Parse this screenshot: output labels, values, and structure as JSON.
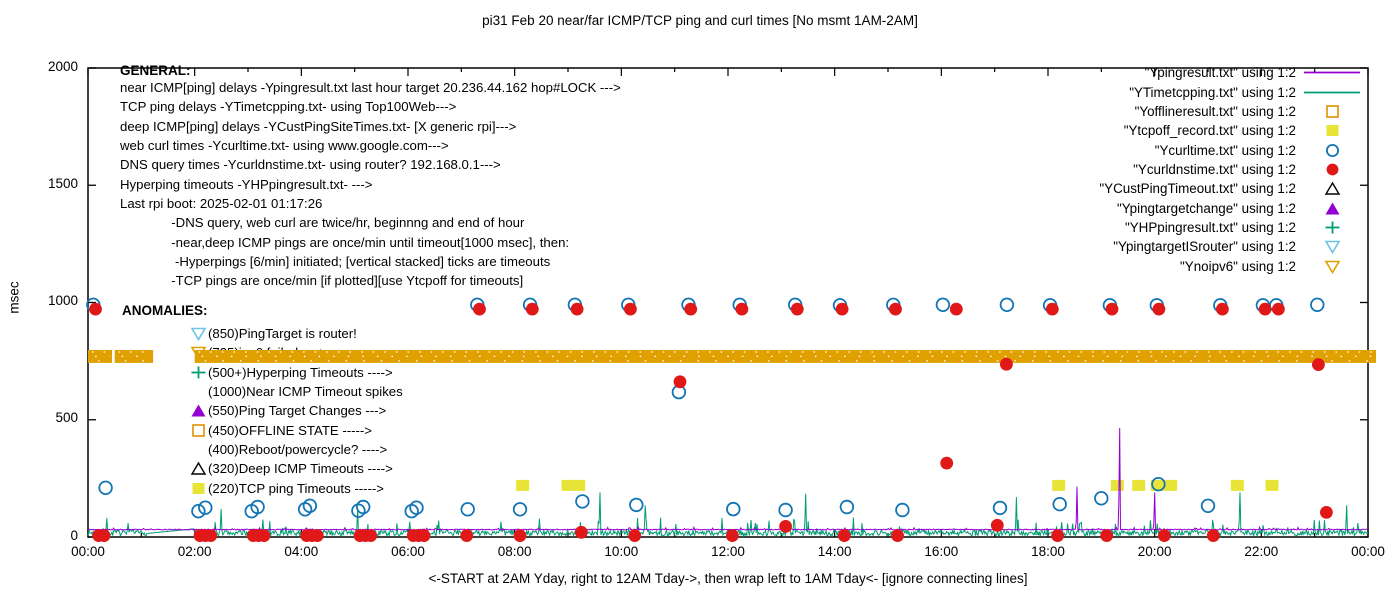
{
  "title": "pi31 Feb 20  near/far ICMP/TCP ping and curl times [No msmt 1AM-2AM]",
  "y_axis": {
    "label": "msec",
    "ticks": [
      0,
      500,
      1000,
      1500,
      2000
    ],
    "max": 2000
  },
  "x_axis": {
    "tick_labels": [
      "00:00",
      "02:00",
      "04:00",
      "06:00",
      "08:00",
      "10:00",
      "12:00",
      "14:00",
      "16:00",
      "18:00",
      "20:00",
      "22:00",
      "00:00"
    ],
    "tick_step_hours": 2,
    "caption": "<-START at 2AM Yday, right to 12AM Tday->, then wrap left to 1AM Tday<- [ignore connecting lines]"
  },
  "general": {
    "heading": "GENERAL:",
    "lines": [
      "near ICMP[ping] delays -Ypingresult.txt last hour target 20.236.44.162 hop#LOCK --->",
      "TCP ping delays -YTimetcpping.txt- using Top100Web--->",
      "deep ICMP[ping] delays -YCustPingSiteTimes.txt- [X generic rpi]--->",
      "web curl times -Ycurltime.txt- using www.google.com--->",
      "DNS query times -Ycurldnstime.txt- using router? 192.168.0.1--->",
      "Hyperping timeouts -YHPpingresult.txt- --->",
      "Last rpi boot: 2025-02-01 01:17:26",
      "              -DNS query, web curl are twice/hr, beginnng and end of hour",
      "              -near,deep ICMP pings are once/min until timeout[1000 msec], then:",
      "               -Hyperpings [6/min] initiated; [vertical stacked] ticks are timeouts",
      "              -TCP pings are once/min [if plotted][use Ytcpoff for timeouts]"
    ]
  },
  "anomalies": {
    "heading": "ANOMALIES:",
    "items": [
      {
        "marker": "down-triangle-open",
        "color": "#6FC2E8",
        "text": "(850)PingTarget is router!"
      },
      {
        "marker": "down-triangle-open",
        "color": "#DFA000",
        "text": "(735)ipv6 failed ---->"
      },
      {
        "marker": "plus",
        "color": "#009E73",
        "text": "(500+)Hyperping Timeouts ---->"
      },
      {
        "marker": "none",
        "color": "#000000",
        "text": "(1000)Near ICMP Timeout spikes"
      },
      {
        "marker": "triangle-fill",
        "color": "#9400D3",
        "text": "(550)Ping Target Changes --->"
      },
      {
        "marker": "square-open",
        "color": "#E09000",
        "text": "(450)OFFLINE STATE ----->"
      },
      {
        "marker": "none",
        "color": "#000000",
        "text": "(400)Reboot/powercycle? ---->"
      },
      {
        "marker": "triangle-open",
        "color": "#000000",
        "text": "(320)Deep ICMP Timeouts ---->"
      },
      {
        "marker": "square-fill",
        "color": "#E8E337",
        "text": "(220)TCP ping Timeouts ----->"
      }
    ]
  },
  "legend": {
    "items": [
      {
        "label": "\"Ypingresult.txt\" using 1:2",
        "marker": "line",
        "color": "#9400D3"
      },
      {
        "label": "\"YTimetcpping.txt\" using 1:2",
        "marker": "line",
        "color": "#009E73"
      },
      {
        "label": "\"Yofflineresult.txt\" using 1:2",
        "marker": "square-open",
        "color": "#E09000"
      },
      {
        "label": "\"Ytcpoff_record.txt\" using 1:2",
        "marker": "square-fill",
        "color": "#E8E337"
      },
      {
        "label": "\"Ycurltime.txt\" using 1:2",
        "marker": "circle-open",
        "color": "#1374B4"
      },
      {
        "label": "\"Ycurldnstime.txt\" using 1:2",
        "marker": "circle-fill",
        "color": "#E01818"
      },
      {
        "label": "\"YCustPingTimeout.txt\" using 1:2",
        "marker": "triangle-open",
        "color": "#000000"
      },
      {
        "label": "\"Ypingtargetchange\" using 1:2",
        "marker": "triangle-fill",
        "color": "#9400D3"
      },
      {
        "label": "\"YHPpingresult.txt\" using 1:2",
        "marker": "plus",
        "color": "#009E73"
      },
      {
        "label": "\"YpingtargetISrouter\" using 1:2",
        "marker": "down-triangle-open",
        "color": "#6FC2E8"
      },
      {
        "label": "\"Ynoipv6\" using 1:2",
        "marker": "down-triangle-open",
        "color": "#DFA000"
      }
    ]
  },
  "chart_data": {
    "type": "scatter",
    "title": "pi31 Feb 20  near/far ICMP/TCP ping and curl times [No msmt 1AM-2AM]",
    "xlabel": "<-START at 2AM Yday, right to 12AM Tday->, then wrap left to 1AM Tday<- [ignore connecting lines]",
    "ylabel": "msec",
    "xlim": [
      0,
      24
    ],
    "ylim": [
      0,
      2000
    ],
    "grid": false,
    "legend_position": "top-right",
    "series": [
      {
        "name": "Ynoipv6",
        "kind": "band",
        "color": "#DFA000",
        "y": 770,
        "thickness_msec": 55,
        "segments": [
          [
            0.0,
            0.45
          ],
          [
            0.5,
            1.22
          ],
          [
            2.0,
            24.15
          ]
        ]
      },
      {
        "name": "Ytcpoff_record.txt",
        "kind": "square-fill",
        "color": "#E8E337",
        "points": [
          [
            8.15,
            220
          ],
          [
            9.0,
            220
          ],
          [
            9.2,
            220
          ],
          [
            18.2,
            220
          ],
          [
            19.3,
            220
          ],
          [
            19.7,
            220
          ],
          [
            20.05,
            220
          ],
          [
            20.3,
            220
          ],
          [
            21.55,
            220
          ],
          [
            22.2,
            220
          ]
        ]
      },
      {
        "name": "YTimetcpping.txt",
        "kind": "line",
        "color": "#009E73",
        "baseline": 5,
        "noise_amp": 62,
        "seed": 7,
        "flat_span": [
          1.1,
          2.0
        ],
        "spikes": [
          [
            0.35,
            80
          ],
          [
            2.5,
            120
          ],
          [
            5.05,
            120
          ],
          [
            9.6,
            190
          ],
          [
            10.45,
            135
          ],
          [
            13.45,
            185
          ],
          [
            17.4,
            170
          ],
          [
            21.6,
            190
          ],
          [
            23.6,
            135
          ]
        ]
      },
      {
        "name": "Ypingresult.txt",
        "kind": "line",
        "color": "#9400D3",
        "baseline": 30,
        "noise_amp": 9,
        "seed": 11,
        "spikes": [
          [
            18.55,
            215
          ],
          [
            19.35,
            465
          ],
          [
            20.0,
            190
          ]
        ]
      },
      {
        "name": "Ycurltime.txt",
        "kind": "circle-open",
        "color": "#1374B4",
        "points": [
          [
            0.1,
            990
          ],
          [
            0.33,
            210
          ],
          [
            2.07,
            110
          ],
          [
            2.2,
            125
          ],
          [
            3.07,
            110
          ],
          [
            3.18,
            128
          ],
          [
            4.07,
            118
          ],
          [
            4.16,
            133
          ],
          [
            5.07,
            112
          ],
          [
            5.16,
            128
          ],
          [
            6.07,
            110
          ],
          [
            6.16,
            125
          ],
          [
            7.12,
            118
          ],
          [
            7.3,
            990
          ],
          [
            8.1,
            118
          ],
          [
            8.29,
            990
          ],
          [
            9.13,
            990
          ],
          [
            9.27,
            152
          ],
          [
            10.13,
            990
          ],
          [
            10.28,
            137
          ],
          [
            11.08,
            618
          ],
          [
            11.26,
            990
          ],
          [
            12.1,
            119
          ],
          [
            12.22,
            990
          ],
          [
            13.08,
            115
          ],
          [
            13.26,
            990
          ],
          [
            14.1,
            988
          ],
          [
            14.23,
            128
          ],
          [
            15.1,
            990
          ],
          [
            15.27,
            115
          ],
          [
            16.03,
            990
          ],
          [
            17.1,
            124
          ],
          [
            17.23,
            990
          ],
          [
            18.04,
            988
          ],
          [
            18.22,
            140
          ],
          [
            19.0,
            165
          ],
          [
            19.16,
            988
          ],
          [
            20.04,
            988
          ],
          [
            20.07,
            225
          ],
          [
            21.0,
            133
          ],
          [
            21.23,
            988
          ],
          [
            22.03,
            988
          ],
          [
            22.28,
            988
          ],
          [
            23.05,
            990
          ]
        ]
      },
      {
        "name": "Ycurldnstime.txt",
        "kind": "circle-fill",
        "color": "#E01818",
        "points": [
          [
            0.14,
            972
          ],
          [
            0.2,
            6
          ],
          [
            0.3,
            6
          ],
          [
            2.1,
            6
          ],
          [
            2.2,
            6
          ],
          [
            2.3,
            6
          ],
          [
            3.1,
            6
          ],
          [
            3.2,
            6
          ],
          [
            3.3,
            6
          ],
          [
            4.1,
            6
          ],
          [
            4.2,
            6
          ],
          [
            4.3,
            6
          ],
          [
            5.1,
            6
          ],
          [
            5.2,
            6
          ],
          [
            5.3,
            6
          ],
          [
            6.1,
            6
          ],
          [
            6.2,
            6
          ],
          [
            6.3,
            6
          ],
          [
            7.1,
            6
          ],
          [
            7.34,
            972
          ],
          [
            8.1,
            6
          ],
          [
            8.33,
            972
          ],
          [
            9.17,
            972
          ],
          [
            9.25,
            20
          ],
          [
            10.17,
            972
          ],
          [
            10.25,
            6
          ],
          [
            11.1,
            662
          ],
          [
            11.3,
            972
          ],
          [
            12.08,
            6
          ],
          [
            12.26,
            972
          ],
          [
            13.08,
            45
          ],
          [
            13.3,
            972
          ],
          [
            14.14,
            972
          ],
          [
            14.18,
            6
          ],
          [
            15.14,
            972
          ],
          [
            15.18,
            6
          ],
          [
            16.1,
            315
          ],
          [
            16.28,
            972
          ],
          [
            17.05,
            50
          ],
          [
            17.22,
            737
          ],
          [
            18.08,
            972
          ],
          [
            18.18,
            6
          ],
          [
            19.1,
            6
          ],
          [
            19.2,
            972
          ],
          [
            20.08,
            972
          ],
          [
            20.18,
            6
          ],
          [
            21.1,
            6
          ],
          [
            21.27,
            972
          ],
          [
            22.07,
            972
          ],
          [
            22.32,
            972
          ],
          [
            23.07,
            735
          ],
          [
            23.22,
            105
          ]
        ]
      }
    ]
  }
}
